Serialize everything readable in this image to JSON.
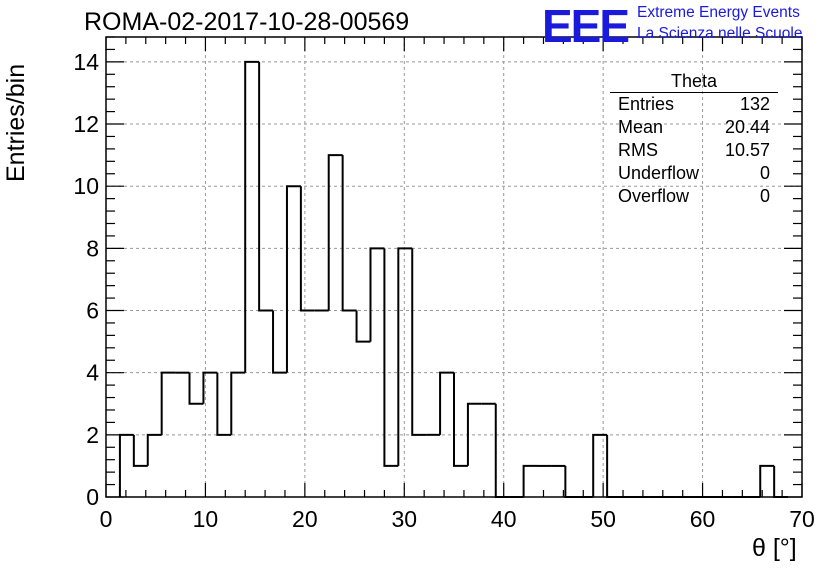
{
  "header": {
    "title": "ROMA-02-2017-10-28-00569",
    "logo_text": "EEE",
    "logo_line1": "Extreme Energy Events",
    "logo_line2": "La Scienza nelle Scuole"
  },
  "stats_box": {
    "name": "Theta",
    "rows": [
      {
        "label": "Entries",
        "value": "132"
      },
      {
        "label": "Mean",
        "value": "20.44"
      },
      {
        "label": "RMS",
        "value": "10.57"
      },
      {
        "label": "Underflow",
        "value": "0"
      },
      {
        "label": "Overflow",
        "value": "0"
      }
    ]
  },
  "colors": {
    "logo": "#1a1adc",
    "line": "#000000",
    "grid": "#999999"
  },
  "chart_data": {
    "type": "bar",
    "histogram": true,
    "title": "ROMA-02-2017-10-28-00569",
    "xlabel": "θ [°]",
    "ylabel": "Entries/bin",
    "xlim": [
      0,
      70
    ],
    "ylim": [
      0,
      14.8
    ],
    "grid": true,
    "bin_width": 1.4,
    "x_ticks": [
      0,
      10,
      20,
      30,
      40,
      50,
      60,
      70
    ],
    "y_ticks": [
      0,
      2,
      4,
      6,
      8,
      10,
      12,
      14
    ],
    "bin_low_edges": [
      1.4,
      2.8,
      4.2,
      5.6,
      7.0,
      8.4,
      9.8,
      11.2,
      12.6,
      14.0,
      15.4,
      16.8,
      18.2,
      19.6,
      21.0,
      22.4,
      23.8,
      25.2,
      26.6,
      28.0,
      29.4,
      30.8,
      32.2,
      33.6,
      35.0,
      36.4,
      37.8,
      39.2,
      40.6,
      42.0,
      43.4,
      44.8,
      46.2,
      47.6,
      49.0,
      50.4,
      51.8,
      53.2,
      54.6,
      56.0,
      57.4,
      58.8,
      60.2,
      61.6,
      63.0,
      64.4,
      65.8,
      67.2
    ],
    "values": [
      2,
      1,
      2,
      4,
      4,
      3,
      4,
      2,
      4,
      14,
      6,
      4,
      10,
      6,
      6,
      11,
      6,
      5,
      8,
      1,
      8,
      2,
      2,
      4,
      1,
      3,
      3,
      0,
      0,
      1,
      1,
      1,
      0,
      0,
      2,
      0,
      0,
      0,
      0,
      0,
      0,
      0,
      0,
      0,
      0,
      0,
      1,
      0
    ]
  }
}
